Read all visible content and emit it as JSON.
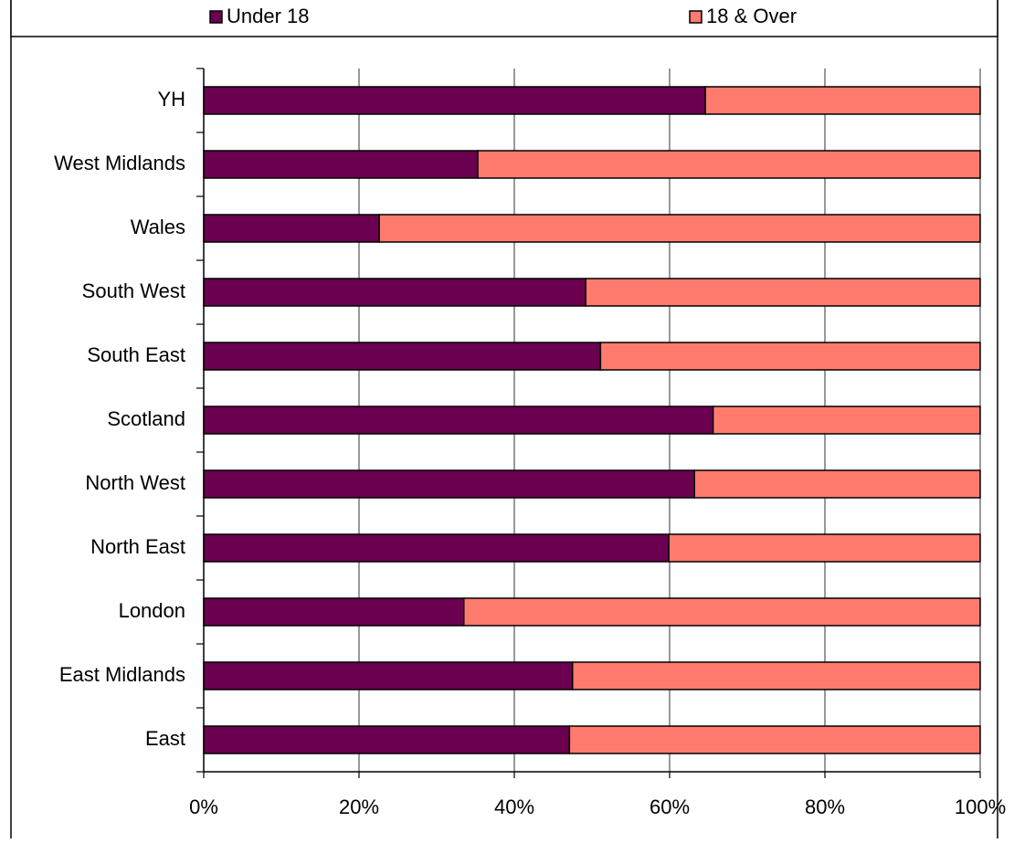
{
  "chart_data": {
    "type": "stacked-bar-horizontal",
    "categories": [
      "East",
      "East Midlands",
      "London",
      "North East",
      "North West",
      "Scotland",
      "South East",
      "South West",
      "Wales",
      "West Midlands",
      "YH"
    ],
    "series": [
      {
        "name": "Under 18",
        "color": "#6b0050",
        "values": [
          47.1,
          47.5,
          33.5,
          59.9,
          63.2,
          65.6,
          51.1,
          49.2,
          22.6,
          35.3,
          64.6
        ]
      },
      {
        "name": "18 & Over",
        "color": "#ff7b6e",
        "values": [
          52.9,
          52.5,
          66.5,
          40.1,
          36.8,
          34.4,
          48.9,
          50.8,
          77.4,
          64.7,
          35.4
        ]
      }
    ],
    "xlim": [
      0,
      100
    ],
    "xticks": [
      {
        "value": 0,
        "label": "0%"
      },
      {
        "value": 20,
        "label": "20%"
      },
      {
        "value": 40,
        "label": "40%"
      },
      {
        "value": 60,
        "label": "60%"
      },
      {
        "value": 80,
        "label": "80%"
      },
      {
        "value": 100,
        "label": "100%"
      }
    ],
    "grid": true,
    "legend": "top"
  }
}
